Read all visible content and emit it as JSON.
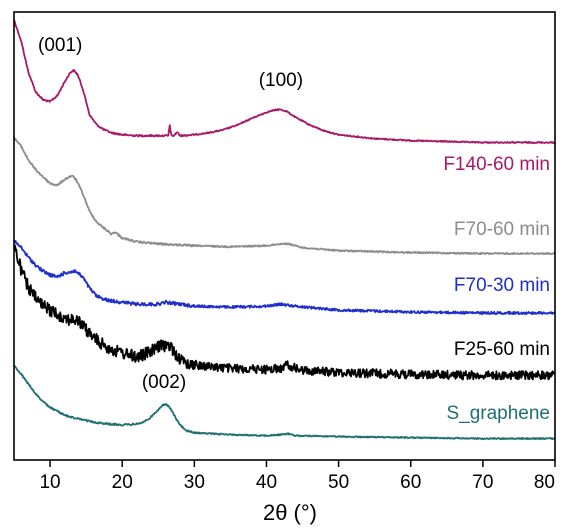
{
  "chart_data": {
    "type": "line",
    "title": "",
    "xlabel": "2θ (°)",
    "ylabel": "",
    "xlim": [
      5,
      80
    ],
    "x_ticks": [
      10,
      20,
      30,
      40,
      50,
      60,
      70,
      80
    ],
    "x_tick_labels": [
      "10",
      "20",
      "30",
      "40",
      "50",
      "60",
      "70",
      "80"
    ],
    "y_ticks_shown": false,
    "grid": false,
    "legend": "none (series labeled inline at right)",
    "series": [
      {
        "name": "F140-60 min",
        "color": "#A8186A",
        "noise": 0.6,
        "points": [
          [
            5,
            8
          ],
          [
            6,
            30
          ],
          [
            7,
            62
          ],
          [
            8,
            82
          ],
          [
            9,
            90
          ],
          [
            10,
            92
          ],
          [
            11,
            86
          ],
          [
            12,
            72
          ],
          [
            12.8,
            62
          ],
          [
            13.3,
            60
          ],
          [
            13.8,
            64
          ],
          [
            14.5,
            78
          ],
          [
            15.5,
            106
          ],
          [
            16.5,
            116
          ],
          [
            17.5,
            121
          ],
          [
            18.5,
            124
          ],
          [
            20,
            126
          ],
          [
            22,
            127
          ],
          [
            24,
            127
          ],
          [
            26,
            127
          ],
          [
            26.4,
            127
          ],
          [
            26.6,
            116
          ],
          [
            26.8,
            127
          ],
          [
            27.2,
            127
          ],
          [
            27.6,
            123
          ],
          [
            28,
            127
          ],
          [
            30,
            126
          ],
          [
            32,
            124
          ],
          [
            34,
            121
          ],
          [
            36,
            116
          ],
          [
            38,
            109
          ],
          [
            40,
            103
          ],
          [
            41,
            101
          ],
          [
            41.8,
            100
          ],
          [
            42.8,
            102
          ],
          [
            44,
            108
          ],
          [
            46,
            116
          ],
          [
            48,
            122
          ],
          [
            50,
            126
          ],
          [
            55,
            130
          ],
          [
            60,
            132
          ],
          [
            70,
            134
          ],
          [
            80,
            134
          ]
        ],
        "label": "F140-60 min",
        "annotations": [
          {
            "text": "(001)",
            "x": 11.4,
            "y": 40
          },
          {
            "text": "(100)",
            "x": 42,
            "y": 76
          }
        ]
      },
      {
        "name": "F70-60 min",
        "color": "#8C8C8C",
        "noise": 0.7,
        "points": [
          [
            5,
            129
          ],
          [
            6,
            138
          ],
          [
            7,
            152
          ],
          [
            8,
            162
          ],
          [
            9,
            169
          ],
          [
            10,
            176
          ],
          [
            11,
            178
          ],
          [
            12,
            172
          ],
          [
            13,
            168
          ],
          [
            13.6,
            172
          ],
          [
            14.5,
            186
          ],
          [
            15.5,
            205
          ],
          [
            16.5,
            216
          ],
          [
            17.5,
            222
          ],
          [
            18.5,
            228
          ],
          [
            19,
            226
          ],
          [
            20,
            232
          ],
          [
            22,
            236
          ],
          [
            25,
            238
          ],
          [
            30,
            240
          ],
          [
            35,
            241
          ],
          [
            40,
            240
          ],
          [
            42,
            238
          ],
          [
            43,
            238
          ],
          [
            45,
            242
          ],
          [
            50,
            245
          ],
          [
            60,
            247
          ],
          [
            70,
            248
          ],
          [
            80,
            248
          ]
        ],
        "label": "F70-60 min"
      },
      {
        "name": "F70-30 min",
        "color": "#1F2ECC",
        "noise": 1.2,
        "points": [
          [
            5,
            235
          ],
          [
            6,
            242
          ],
          [
            7,
            252
          ],
          [
            8,
            260
          ],
          [
            9,
            266
          ],
          [
            10,
            270
          ],
          [
            11,
            272
          ],
          [
            12,
            268
          ],
          [
            13.5,
            266
          ],
          [
            14.5,
            272
          ],
          [
            15.5,
            284
          ],
          [
            16.5,
            292
          ],
          [
            18,
            296
          ],
          [
            20,
            298
          ],
          [
            22,
            300
          ],
          [
            25,
            300
          ],
          [
            26,
            298
          ],
          [
            28,
            300
          ],
          [
            30,
            302
          ],
          [
            35,
            303
          ],
          [
            40,
            302
          ],
          [
            42,
            300
          ],
          [
            44,
            302
          ],
          [
            50,
            306
          ],
          [
            60,
            308
          ],
          [
            70,
            309
          ],
          [
            80,
            309
          ]
        ],
        "label": "F70-30 min"
      },
      {
        "name": "F25-60 min",
        "color": "#000000",
        "noise": 4.5,
        "points": [
          [
            5,
            240
          ],
          [
            6,
            265
          ],
          [
            7,
            283
          ],
          [
            8,
            294
          ],
          [
            9,
            302
          ],
          [
            10,
            306
          ],
          [
            11,
            310
          ],
          [
            12,
            314
          ],
          [
            13,
            316
          ],
          [
            14,
            318
          ],
          [
            15,
            326
          ],
          [
            16,
            334
          ],
          [
            17,
            340
          ],
          [
            18,
            344
          ],
          [
            19,
            348
          ],
          [
            20,
            350
          ],
          [
            21,
            352
          ],
          [
            22,
            354
          ],
          [
            23,
            352
          ],
          [
            24,
            348
          ],
          [
            25,
            344
          ],
          [
            26,
            342
          ],
          [
            26.8,
            344
          ],
          [
            27.5,
            352
          ],
          [
            28.5,
            360
          ],
          [
            30,
            362
          ],
          [
            32,
            364
          ],
          [
            35,
            366
          ],
          [
            40,
            367
          ],
          [
            42,
            366
          ],
          [
            43,
            362
          ],
          [
            44,
            366
          ],
          [
            45,
            368
          ],
          [
            50,
            370
          ],
          [
            60,
            372
          ],
          [
            70,
            373
          ],
          [
            80,
            373
          ]
        ],
        "label": "F25-60 min"
      },
      {
        "name": "S_graphene",
        "color": "#1F7073",
        "noise": 0.6,
        "points": [
          [
            5,
            363
          ],
          [
            6,
            372
          ],
          [
            7,
            382
          ],
          [
            8,
            392
          ],
          [
            9,
            400
          ],
          [
            10,
            406
          ],
          [
            11,
            410
          ],
          [
            12,
            414
          ],
          [
            14,
            418
          ],
          [
            16,
            421
          ],
          [
            18,
            423
          ],
          [
            20,
            424
          ],
          [
            22,
            423
          ],
          [
            23,
            421
          ],
          [
            24,
            416
          ],
          [
            25,
            408
          ],
          [
            25.6,
            404
          ],
          [
            26,
            403
          ],
          [
            26.5,
            405
          ],
          [
            27.2,
            414
          ],
          [
            28,
            424
          ],
          [
            29,
            430
          ],
          [
            30,
            432
          ],
          [
            35,
            434
          ],
          [
            40,
            435
          ],
          [
            42,
            434
          ],
          [
            43,
            433
          ],
          [
            44,
            435
          ],
          [
            50,
            436
          ],
          [
            60,
            437
          ],
          [
            70,
            438
          ],
          [
            80,
            438
          ]
        ],
        "label": "S_graphene",
        "annotations": [
          {
            "text": "(002)",
            "x": 25.8,
            "y": 386
          }
        ]
      }
    ]
  }
}
